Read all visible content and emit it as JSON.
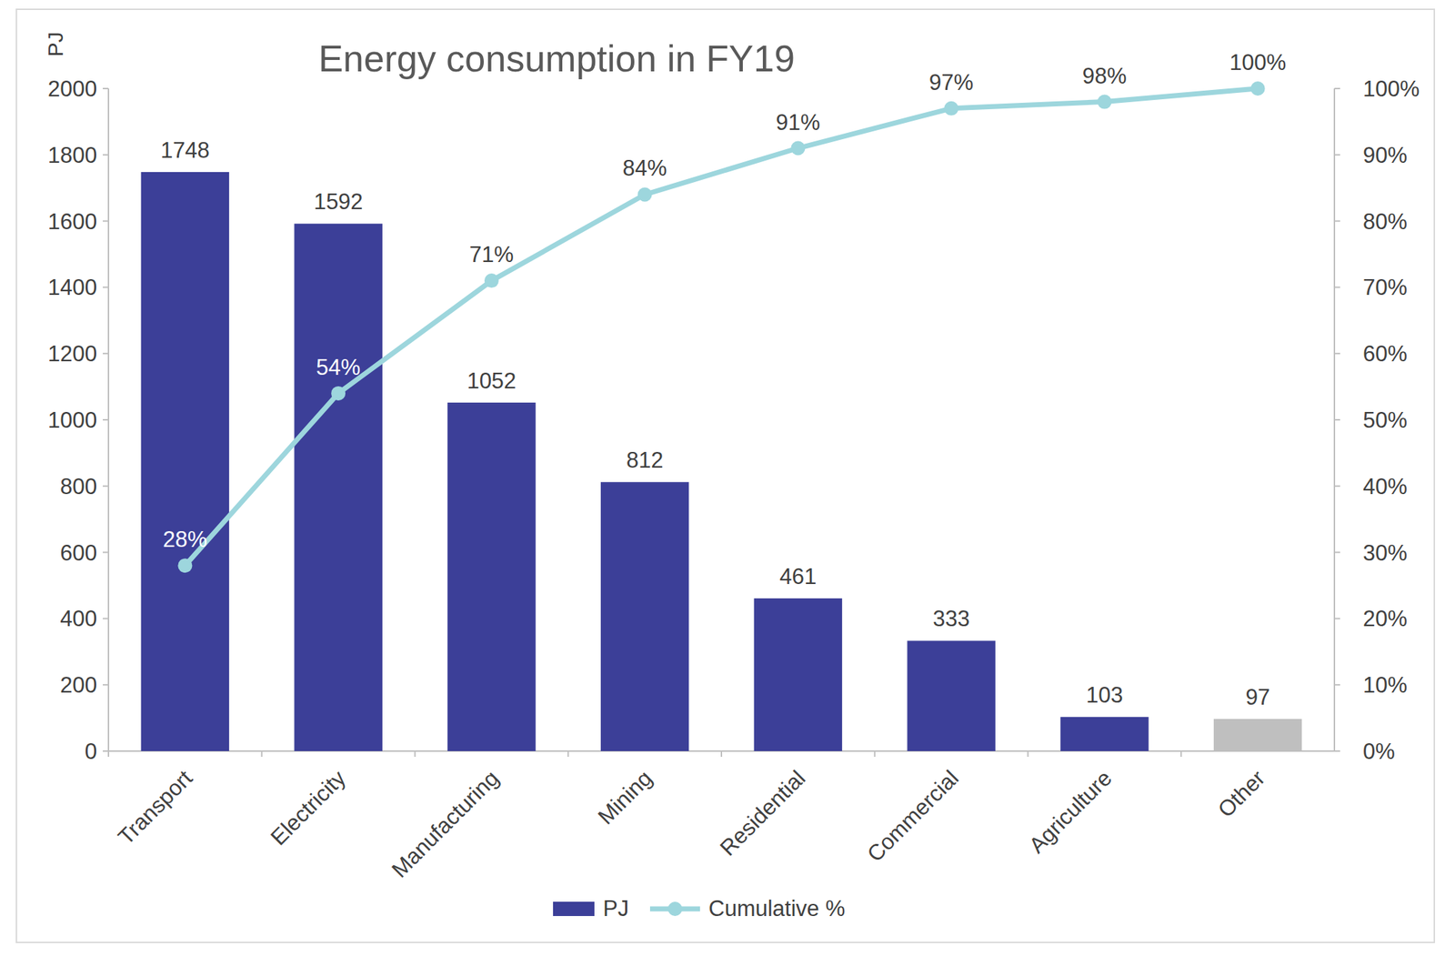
{
  "chart_data": {
    "type": "bar",
    "title": "Energy consumption in FY19",
    "ylabel": "PJ",
    "categories": [
      "Transport",
      "Electricity",
      "Manufacturing",
      "Mining",
      "Residential",
      "Commercial",
      "Agriculture",
      "Other"
    ],
    "series": [
      {
        "name": "PJ",
        "type": "bar",
        "colors": [
          "#3c3f98",
          "#3c3f98",
          "#3c3f98",
          "#3c3f98",
          "#3c3f98",
          "#3c3f98",
          "#3c3f98",
          "#bfbfbf"
        ],
        "values": [
          1748,
          1592,
          1052,
          812,
          461,
          333,
          103,
          97
        ]
      },
      {
        "name": "Cumulative %",
        "type": "line",
        "axis": "y2",
        "color": "#9dd6dd",
        "marker": "circle",
        "values": [
          28,
          54,
          71,
          84,
          91,
          97,
          98,
          100
        ],
        "value_labels": [
          "28%",
          "54%",
          "71%",
          "84%",
          "91%",
          "97%",
          "98%",
          "100%"
        ]
      }
    ],
    "ylim": [
      0,
      2000
    ],
    "yticks": [
      0,
      200,
      400,
      600,
      800,
      1000,
      1200,
      1400,
      1600,
      1800,
      2000
    ],
    "y2lim": [
      0,
      100
    ],
    "y2ticks": [
      {
        "value": 0,
        "label": "0%"
      },
      {
        "value": 10,
        "label": "10%"
      },
      {
        "value": 20,
        "label": "20%"
      },
      {
        "value": 30,
        "label": "30%"
      },
      {
        "value": 40,
        "label": "40%"
      },
      {
        "value": 50,
        "label": "50%"
      },
      {
        "value": 60,
        "label": "60%"
      },
      {
        "value": 70,
        "label": "70%"
      },
      {
        "value": 80,
        "label": "80%"
      },
      {
        "value": 90,
        "label": "90%"
      },
      {
        "value": 100,
        "label": "100%"
      }
    ],
    "grid": false,
    "legend": "bottom",
    "data_labels": true
  }
}
